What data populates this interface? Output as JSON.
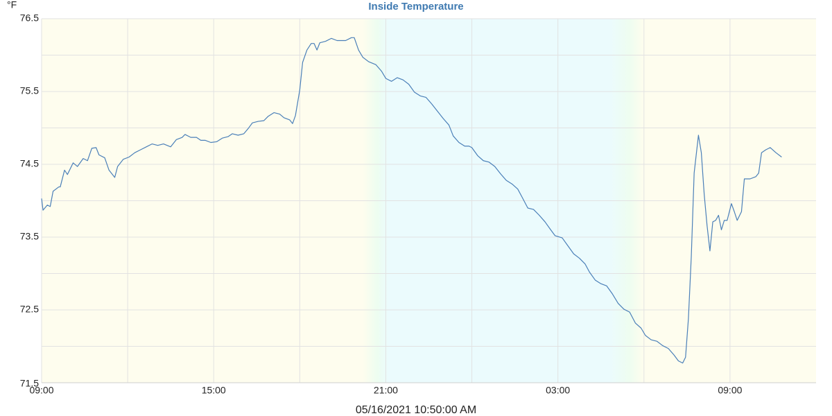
{
  "chart_data": {
    "type": "line",
    "title": "Inside Temperature",
    "y_label": "°F",
    "footer": "05/16/2021 10:50:00 AM",
    "color": "#4a7fb8",
    "xlim": [
      0,
      27
    ],
    "xticks": [
      {
        "value": 0,
        "label": "09:00"
      },
      {
        "value": 6,
        "label": "15:00"
      },
      {
        "value": 12,
        "label": "21:00"
      },
      {
        "value": 18,
        "label": "03:00"
      },
      {
        "value": 24,
        "label": "09:00"
      }
    ],
    "x_minor_grid": [
      3,
      9,
      15,
      21
    ],
    "ylim": [
      71.5,
      76.5
    ],
    "yticks": [
      71.5,
      72.5,
      73.5,
      74.5,
      75.5,
      76.5
    ],
    "y_minor_grid": [
      72,
      73,
      74,
      75,
      76
    ],
    "grid": true,
    "shading": [
      {
        "x": 0,
        "color": "#fefdee"
      },
      {
        "x": 11.2,
        "color": "#fefdee"
      },
      {
        "x": 11.7,
        "color": "#edfdf0"
      },
      {
        "x": 12.1,
        "color": "#ebfbfd"
      },
      {
        "x": 19.8,
        "color": "#ebfbfd"
      },
      {
        "x": 20.5,
        "color": "#eefdf0"
      },
      {
        "x": 21,
        "color": "#fefdee"
      },
      {
        "x": 27,
        "color": "#fefdee"
      }
    ],
    "x": [
      0,
      0.05,
      0.2,
      0.3,
      0.4,
      0.6,
      0.65,
      0.8,
      0.9,
      1.1,
      1.25,
      1.45,
      1.6,
      1.75,
      1.9,
      2.0,
      2.2,
      2.35,
      2.55,
      2.65,
      2.85,
      3.05,
      3.25,
      3.45,
      3.65,
      3.85,
      4.05,
      4.25,
      4.5,
      4.7,
      4.9,
      5.0,
      5.2,
      5.4,
      5.55,
      5.7,
      5.9,
      6.1,
      6.3,
      6.5,
      6.65,
      6.85,
      7.05,
      7.2,
      7.35,
      7.55,
      7.75,
      7.9,
      8.1,
      8.3,
      8.45,
      8.65,
      8.75,
      8.85,
      9.0,
      9.1,
      9.25,
      9.4,
      9.5,
      9.6,
      9.7,
      9.9,
      10.1,
      10.3,
      10.5,
      10.6,
      10.8,
      10.9,
      11.05,
      11.2,
      11.4,
      11.65,
      11.85,
      12.0,
      12.2,
      12.4,
      12.6,
      12.8,
      13.0,
      13.2,
      13.4,
      13.6,
      13.8,
      14.0,
      14.2,
      14.35,
      14.55,
      14.75,
      14.9,
      15.0,
      15.2,
      15.4,
      15.6,
      15.8,
      16.0,
      16.2,
      16.4,
      16.6,
      16.75,
      16.95,
      17.15,
      17.35,
      17.55,
      17.75,
      17.9,
      18.15,
      18.35,
      18.55,
      18.75,
      18.95,
      19.1,
      19.3,
      19.5,
      19.7,
      19.9,
      20.1,
      20.3,
      20.5,
      20.7,
      20.9,
      21.05,
      21.25,
      21.45,
      21.65,
      21.85,
      22.05,
      22.2,
      22.35,
      22.45,
      22.55,
      22.65,
      22.75,
      22.9,
      23.0,
      23.1,
      23.2,
      23.3,
      23.4,
      23.5,
      23.6,
      23.7,
      23.8,
      23.9,
      24.05,
      24.15,
      24.25,
      24.4,
      24.5,
      24.7,
      24.9,
      25.0,
      25.1,
      25.25,
      25.4,
      25.6,
      25.8
    ],
    "values": [
      74.03,
      73.87,
      73.94,
      73.92,
      74.13,
      74.19,
      74.19,
      74.42,
      74.36,
      74.52,
      74.47,
      74.58,
      74.55,
      74.72,
      74.73,
      74.63,
      74.59,
      74.42,
      74.32,
      74.47,
      74.57,
      74.6,
      74.66,
      74.7,
      74.74,
      74.78,
      74.76,
      74.78,
      74.74,
      74.84,
      74.87,
      74.91,
      74.87,
      74.87,
      74.83,
      74.83,
      74.8,
      74.81,
      74.86,
      74.88,
      74.92,
      74.9,
      74.92,
      74.99,
      75.07,
      75.09,
      75.1,
      75.16,
      75.21,
      75.19,
      75.14,
      75.11,
      75.06,
      75.17,
      75.52,
      75.9,
      76.07,
      76.16,
      76.16,
      76.07,
      76.17,
      76.19,
      76.23,
      76.2,
      76.2,
      76.2,
      76.24,
      76.24,
      76.07,
      75.97,
      75.91,
      75.87,
      75.78,
      75.68,
      75.64,
      75.69,
      75.66,
      75.6,
      75.49,
      75.44,
      75.42,
      75.33,
      75.23,
      75.13,
      75.04,
      74.89,
      74.8,
      74.75,
      74.75,
      74.73,
      74.62,
      74.55,
      74.53,
      74.47,
      74.37,
      74.28,
      74.23,
      74.16,
      74.05,
      73.9,
      73.88,
      73.8,
      73.71,
      73.6,
      73.52,
      73.49,
      73.38,
      73.27,
      73.21,
      73.13,
      73.02,
      72.91,
      72.86,
      72.83,
      72.72,
      72.59,
      72.51,
      72.47,
      72.32,
      72.25,
      72.15,
      72.09,
      72.07,
      72.01,
      71.97,
      71.88,
      71.8,
      71.77,
      71.85,
      72.38,
      73.23,
      74.38,
      74.9,
      74.66,
      74.09,
      73.66,
      73.31,
      73.71,
      73.73,
      73.8,
      73.6,
      73.73,
      73.73,
      73.96,
      73.85,
      73.73,
      73.85,
      74.3,
      74.3,
      74.33,
      74.38,
      74.66,
      74.7,
      74.73,
      74.66,
      74.6
    ]
  }
}
